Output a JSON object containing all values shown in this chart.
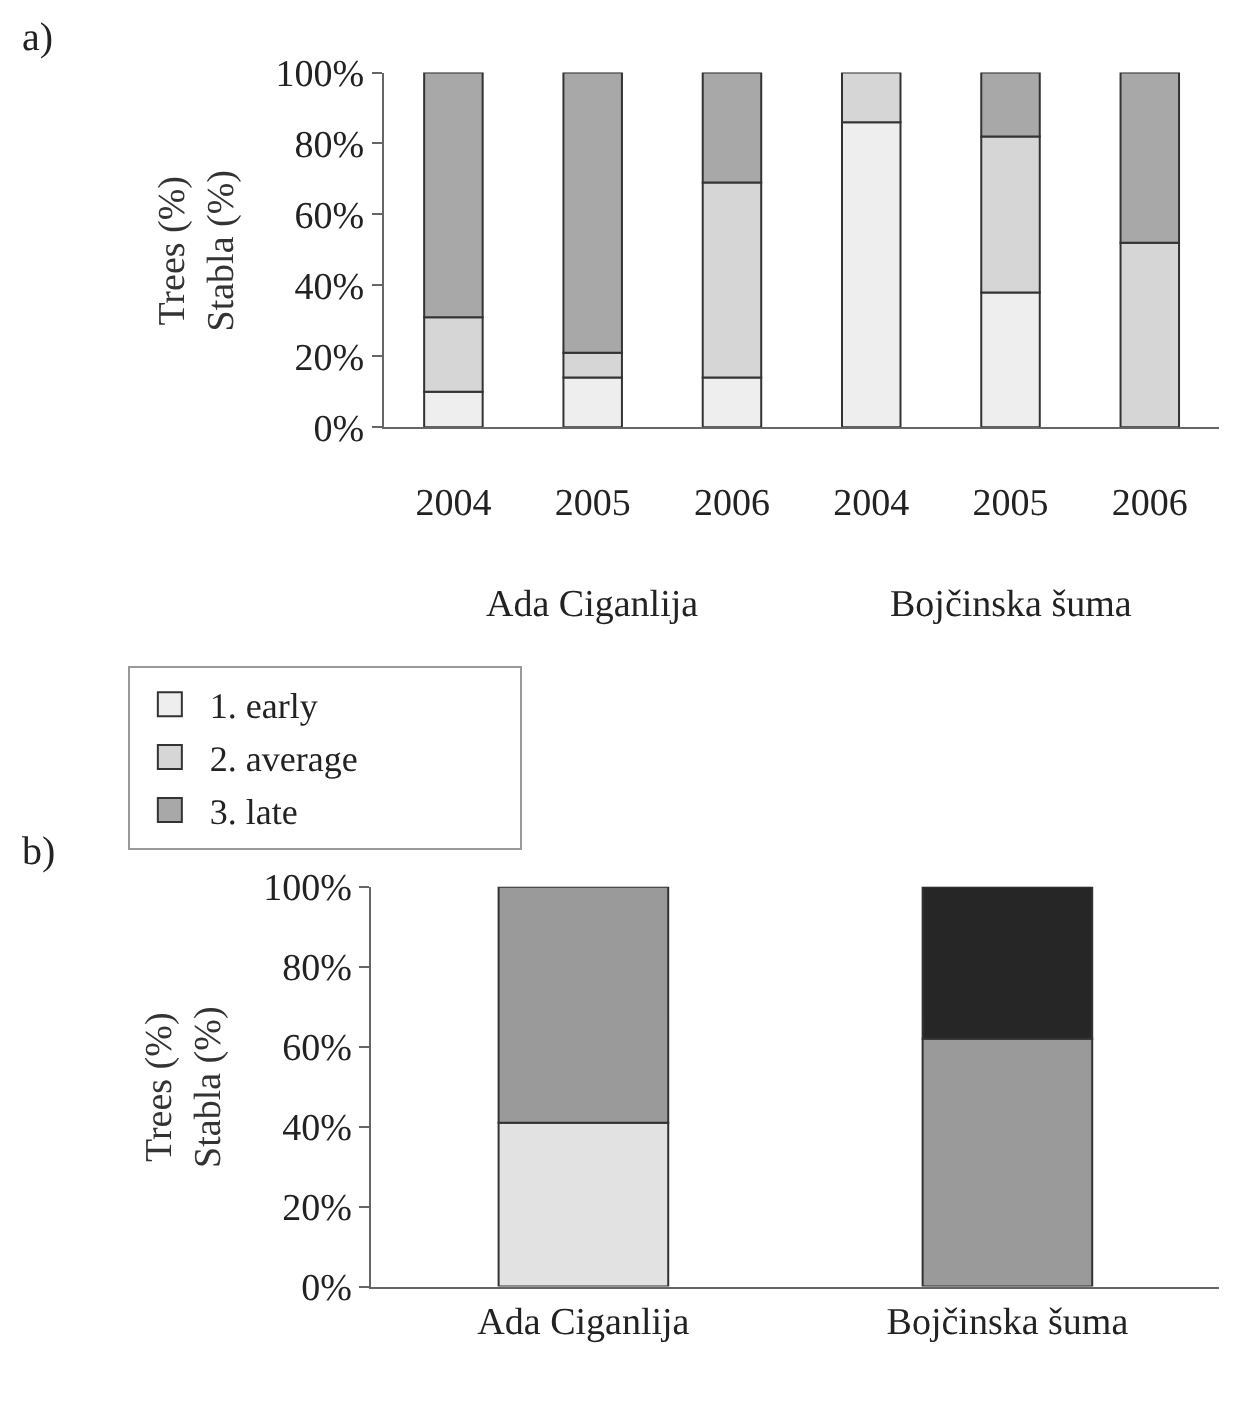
{
  "chart_data": [
    {
      "type": "bar",
      "stacked": true,
      "categories": [
        "2004",
        "2005",
        "2006",
        "2004",
        "2005",
        "2006"
      ],
      "ylabel": "Trees (%)\nStabla (%)",
      "annotations": [
        "a)",
        "Ada Ciganlija",
        "Bojčinska šuma"
      ],
      "legend": "bottom",
      "ylim": [
        0,
        100
      ],
      "yticks": [
        {
          "value": 0,
          "label": "0%"
        },
        {
          "value": 20,
          "label": "20%"
        },
        {
          "value": 40,
          "label": "40%"
        },
        {
          "value": 60,
          "label": "60%"
        },
        {
          "value": 80,
          "label": "80%"
        },
        {
          "value": 100,
          "label": "100%"
        }
      ],
      "series": [
        {
          "name": "1. early",
          "color": "#eeeeee",
          "values": [
            10,
            14,
            14,
            86,
            38,
            0
          ]
        },
        {
          "name": "2. average",
          "color": "#d6d6d6",
          "values": [
            21,
            7,
            55,
            14,
            44,
            52
          ]
        },
        {
          "name": "3. late",
          "color": "#a8a8a8",
          "values": [
            69,
            79,
            31,
            0,
            18,
            48
          ]
        }
      ]
    },
    {
      "type": "bar",
      "stacked": true,
      "categories": [
        "Ada Ciganlija",
        "Bojčinska šuma"
      ],
      "ylabel": "Trees (%)\nStabla (%)",
      "annotations": [
        "b)"
      ],
      "ylim": [
        0,
        100
      ],
      "yticks": [
        {
          "value": 0,
          "label": "0%"
        },
        {
          "value": 20,
          "label": "20%"
        },
        {
          "value": 40,
          "label": "40%"
        },
        {
          "value": 60,
          "label": "60%"
        },
        {
          "value": 80,
          "label": "80%"
        },
        {
          "value": 100,
          "label": "100%"
        }
      ],
      "series": [
        {
          "color": "#e2e2e2",
          "values": [
            41,
            0
          ]
        },
        {
          "color": "#9a9a9a",
          "values": [
            59,
            62
          ]
        },
        {
          "color": "#262626",
          "values": [
            0,
            38
          ]
        }
      ]
    }
  ]
}
